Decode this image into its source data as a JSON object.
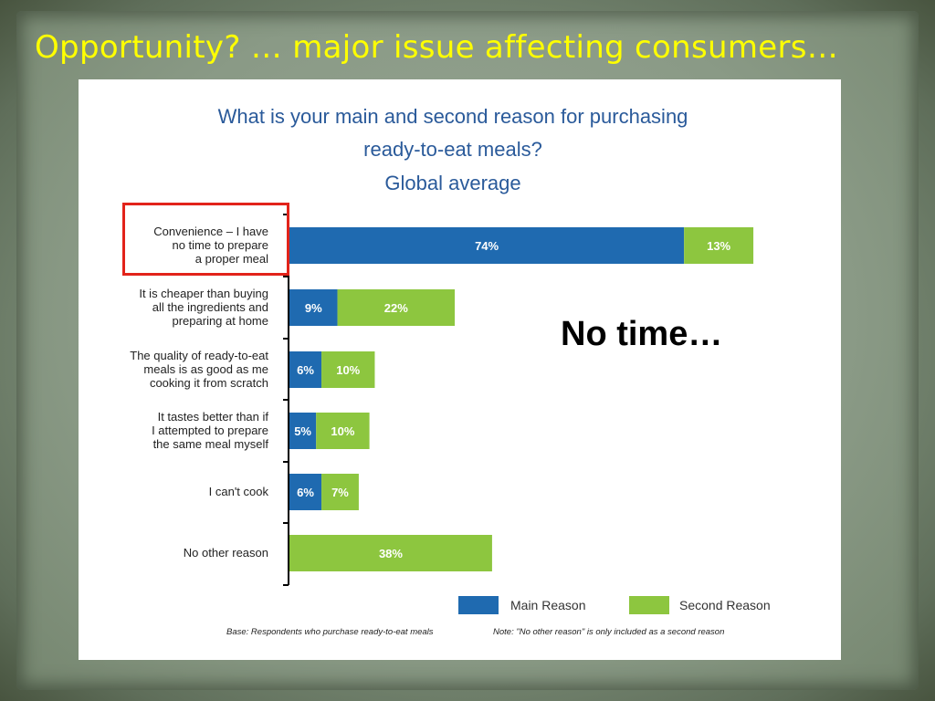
{
  "slide": {
    "title": "Opportunity? … major issue affecting consumers…",
    "callout": "No time…"
  },
  "chart_data": {
    "type": "bar",
    "orientation": "horizontal",
    "stacked": true,
    "title_lines": [
      "What is your main and second reason for purchasing",
      "ready-to-eat meals?",
      "Global average"
    ],
    "categories": [
      "Convenience – I have no time to prepare a proper meal",
      "It is cheaper than buying all the ingredients and preparing at home",
      "The quality of ready-to-eat meals is as good as me cooking it from scratch",
      "It tastes better than if I attempted to prepare the same meal myself",
      "I can't cook",
      "No other reason"
    ],
    "category_lines": [
      [
        "Convenience – I have",
        "no time to prepare",
        "a proper meal"
      ],
      [
        "It is cheaper than buying",
        "all the ingredients and",
        "preparing at home"
      ],
      [
        "The quality of ready-to-eat",
        "meals is as good as me",
        "cooking it from scratch"
      ],
      [
        "It tastes better than if",
        "I attempted to prepare",
        "the same meal myself"
      ],
      [
        "I can't cook"
      ],
      [
        "No other reason"
      ]
    ],
    "series": [
      {
        "name": "Main Reason",
        "color": "#1f6ab0",
        "values": [
          74,
          9,
          6,
          5,
          6,
          0
        ]
      },
      {
        "name": "Second Reason",
        "color": "#8dc63f",
        "values": [
          13,
          22,
          10,
          10,
          7,
          38
        ]
      }
    ],
    "value_format": "{v}%",
    "legend_position": "bottom-right",
    "highlighted_category": 0,
    "xlim": [
      0,
      90
    ]
  },
  "footnotes": {
    "base": "Base: Respondents who purchase ready-to-eat meals",
    "note": "Note: \"No other reason\" is only included as a second reason"
  }
}
